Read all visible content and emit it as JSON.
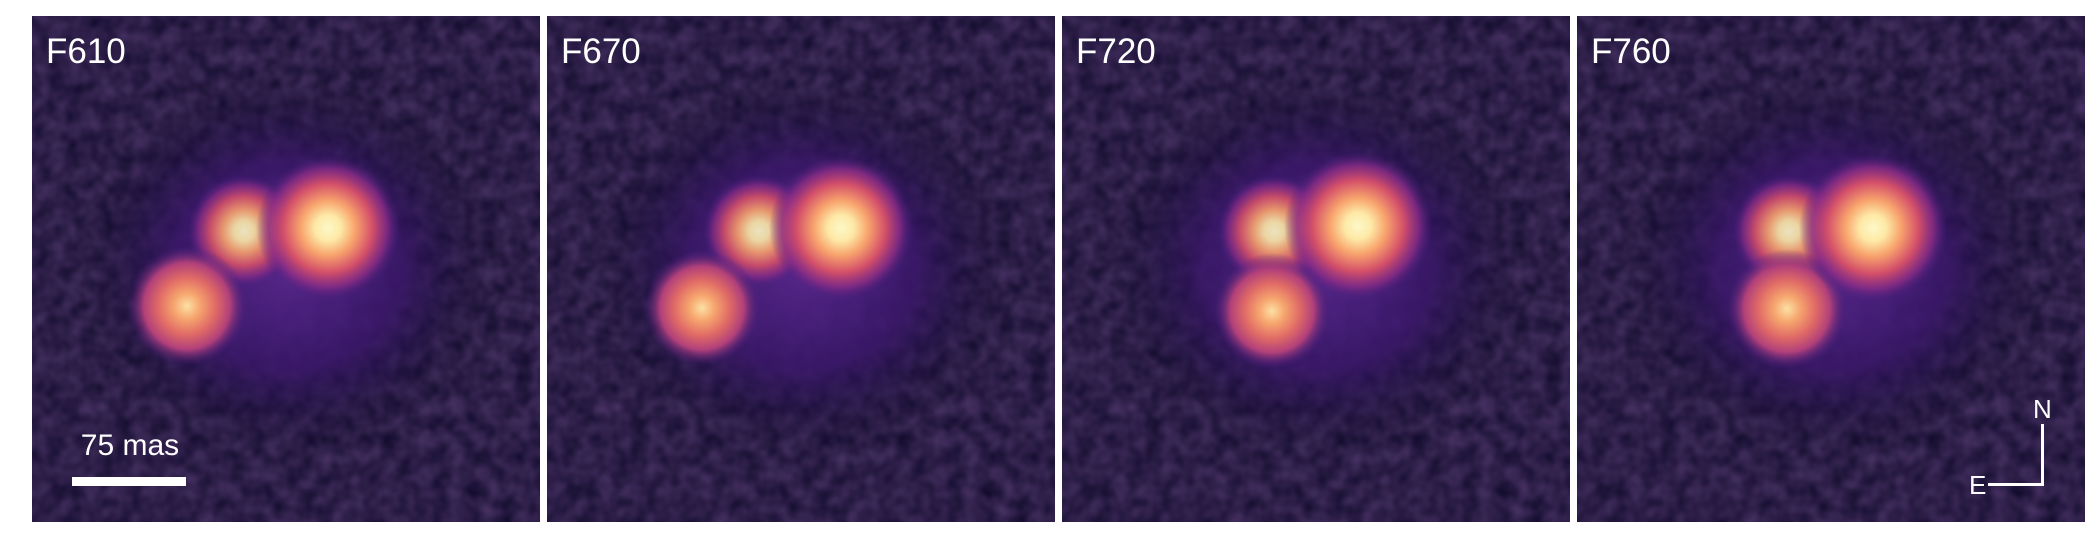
{
  "panels": [
    {
      "label": "F610"
    },
    {
      "label": "F670"
    },
    {
      "label": "F720"
    },
    {
      "label": "F760"
    }
  ],
  "scale_bar": {
    "label": "75 mas"
  },
  "compass": {
    "north": "N",
    "east": "E"
  },
  "colormap": {
    "background": "#0d0828",
    "halo": "#4a1f7e",
    "ring": "#7c3aa0",
    "mid": "#d9566b",
    "bright": "#fca96c",
    "core": "#fcf7c0"
  }
}
